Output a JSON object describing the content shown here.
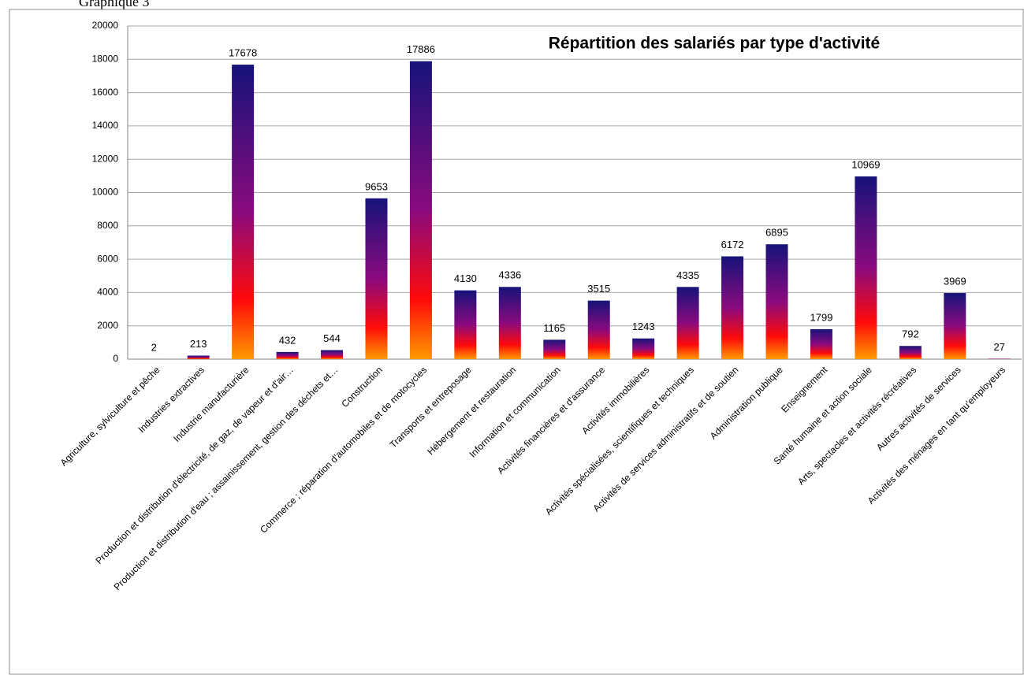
{
  "caption": "Graphique 3",
  "chart_data": {
    "type": "bar",
    "title": "Répartition des salariés par type d'activité",
    "categories": [
      "Agriculture, sylviculture et pêche",
      "Industries extractives",
      "Industrie manufacturière",
      "Production et distribution d'électricité, de gaz, de vapeur et d'air…",
      "Production et distribution d'eau ; assainissement, gestion des déchets et…",
      "Construction",
      "Commerce ; réparation d'automobiles et de motocycles",
      "Transports et entreposage",
      "Hébergement et restauration",
      "Information et communication",
      "Activités financières et d'assurance",
      "Activités immobilières",
      "Activités spécialisées, scientifiques et techniques",
      "Activités de services administratifs et de soutien",
      "Administration publique",
      "Enseignement",
      "Santé humaine et action sociale",
      "Arts, spectacles et activités récréatives",
      "Autres activités de services",
      "Activités des ménages en tant qu'employeurs"
    ],
    "values": [
      2,
      213,
      17678,
      432,
      544,
      9653,
      17886,
      4130,
      4336,
      1165,
      3515,
      1243,
      4335,
      6172,
      6895,
      1799,
      10969,
      792,
      3969,
      27
    ],
    "color_stops": [
      "#16137a",
      "#8a0a7e",
      "#ff0a0a",
      "#ff9a00"
    ],
    "ylim": [
      0,
      20000
    ],
    "yticks": [
      0,
      2000,
      4000,
      6000,
      8000,
      10000,
      12000,
      14000,
      16000,
      18000,
      20000
    ],
    "grid": true
  }
}
